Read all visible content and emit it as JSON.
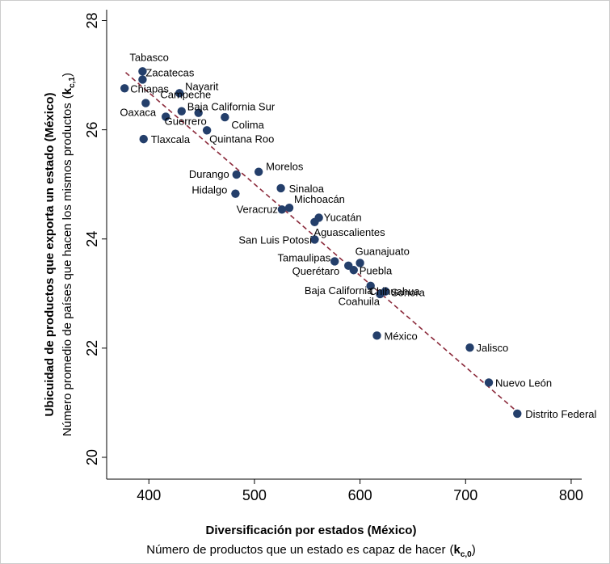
{
  "chart_data": {
    "type": "scatter",
    "xlim": [
      360,
      810
    ],
    "ylim": [
      19.6,
      28.2
    ],
    "xticks": [
      400,
      500,
      600,
      700,
      800
    ],
    "yticks": [
      20,
      22,
      24,
      26,
      28
    ],
    "xlabel_bold": "Diversificación por estados  (México)",
    "xlabel_sub": "Número de productos que un estado es capaz de hacer",
    "xlabel_sym": "k",
    "xlabel_sym_sub": "c,0",
    "ylabel_bold": "Ubicuidad de productos que exporta un estado (México)",
    "ylabel_sub": "Número promedio de países que hacen los mismos productos",
    "ylabel_sym": "k",
    "ylabel_sym_sub": "c,1",
    "point_color": "#243f6b",
    "fit_line_color": "#8b2a3b",
    "fit_line": {
      "x": [
        378,
        748
      ],
      "y": [
        27.05,
        20.85
      ]
    },
    "points": [
      {
        "name": "Tabasco",
        "x": 394,
        "y": 27.07
      },
      {
        "name": "Zacatecas",
        "x": 394,
        "y": 26.92
      },
      {
        "name": "Chiapas",
        "x": 377,
        "y": 26.76
      },
      {
        "name": "Nayarit",
        "x": 429,
        "y": 26.67
      },
      {
        "name": "Campeche",
        "x": 397,
        "y": 26.49
      },
      {
        "name": "Baja California Sur",
        "x": 431,
        "y": 26.34
      },
      {
        "name": "Oaxaca",
        "x": 416,
        "y": 26.24
      },
      {
        "name": "Guerrero",
        "x": 447,
        "y": 26.31
      },
      {
        "name": "Colima",
        "x": 472,
        "y": 26.23
      },
      {
        "name": "Tlaxcala",
        "x": 395,
        "y": 25.83
      },
      {
        "name": "Quintana Roo",
        "x": 455,
        "y": 25.99
      },
      {
        "name": "Durango",
        "x": 483,
        "y": 25.18
      },
      {
        "name": "Morelos",
        "x": 504,
        "y": 25.23
      },
      {
        "name": "Hidalgo",
        "x": 482,
        "y": 24.83
      },
      {
        "name": "Sinaloa",
        "x": 525,
        "y": 24.93
      },
      {
        "name": "Veracruz",
        "x": 526,
        "y": 24.54
      },
      {
        "name": "Michoacán",
        "x": 533,
        "y": 24.57
      },
      {
        "name": "Yucatán",
        "x": 561,
        "y": 24.39
      },
      {
        "name": "Aguascalientes",
        "x": 557,
        "y": 24.31
      },
      {
        "name": "San Luis Potosí",
        "x": 557,
        "y": 23.99
      },
      {
        "name": "Tamaulipas",
        "x": 576,
        "y": 23.59
      },
      {
        "name": "Guanajuato",
        "x": 600,
        "y": 23.56
      },
      {
        "name": "Querétaro",
        "x": 589,
        "y": 23.51
      },
      {
        "name": "Puebla",
        "x": 594,
        "y": 23.43
      },
      {
        "name": "Chihuahua",
        "x": 610,
        "y": 23.14
      },
      {
        "name": "Baja California",
        "x": 619,
        "y": 22.99
      },
      {
        "name": "Coahuila",
        "x": 624,
        "y": 23.04
      },
      {
        "name": "Sonora",
        "x": 624,
        "y": 23.04
      },
      {
        "name": "México",
        "x": 616,
        "y": 22.23
      },
      {
        "name": "Jalisco",
        "x": 704,
        "y": 22.01
      },
      {
        "name": "Nuevo León",
        "x": 722,
        "y": 21.37
      },
      {
        "name": "Distrito Federal",
        "x": 749,
        "y": 20.8
      }
    ]
  }
}
